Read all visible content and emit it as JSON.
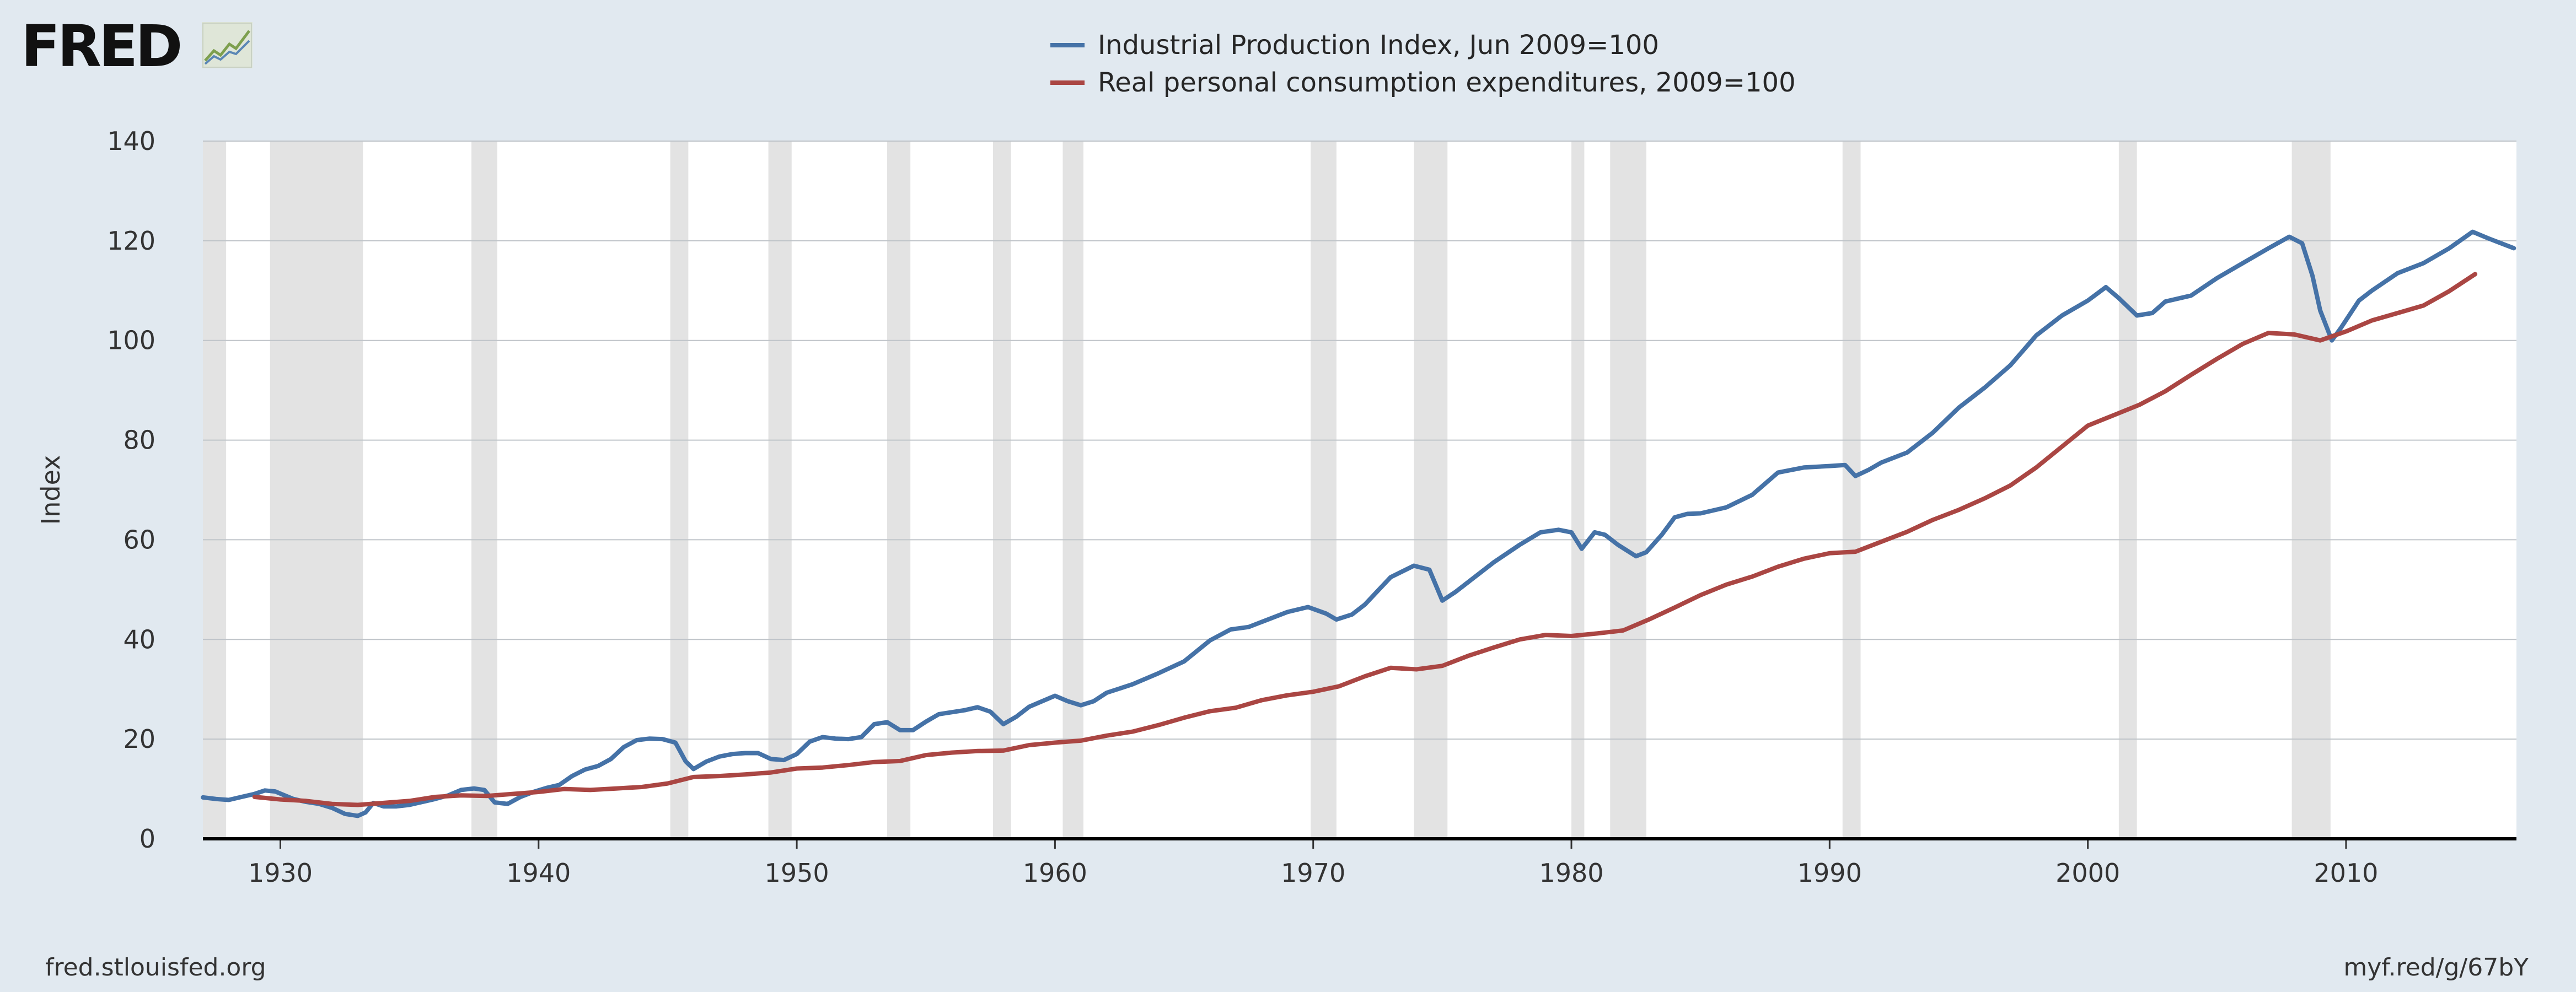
{
  "brand": {
    "name": "FRED"
  },
  "footer": {
    "left": "fred.stlouisfed.org",
    "right": "myf.red/g/67bY"
  },
  "colors": {
    "background": "#e1e9f0",
    "plot_bg": "#ffffff",
    "recession": "#e3e3e3",
    "grid": "#bfc4c9",
    "series1": "#4572a7",
    "series2": "#aa4643"
  },
  "chart_data": {
    "type": "line",
    "title": "",
    "xlabel": "",
    "ylabel": "Index",
    "xlim": [
      1927,
      2016.6
    ],
    "ylim": [
      0,
      140
    ],
    "y_ticks": [
      0,
      20,
      40,
      60,
      80,
      100,
      120,
      140
    ],
    "y_tick_labels": [
      "0",
      "20",
      "40",
      "60",
      "80",
      "100",
      "120",
      "140"
    ],
    "x_ticks": [
      1930,
      1940,
      1950,
      1960,
      1970,
      1980,
      1990,
      2000,
      2010
    ],
    "x_tick_labels": [
      "1930",
      "1940",
      "1950",
      "1960",
      "1970",
      "1980",
      "1990",
      "2000",
      "2010"
    ],
    "grid": true,
    "legend_position": "top-center",
    "recessions": [
      [
        1927.0,
        1927.9
      ],
      [
        1929.6,
        1933.2
      ],
      [
        1937.4,
        1938.4
      ],
      [
        1945.1,
        1945.8
      ],
      [
        1948.9,
        1949.8
      ],
      [
        1953.5,
        1954.4
      ],
      [
        1957.6,
        1958.3
      ],
      [
        1960.3,
        1961.1
      ],
      [
        1969.9,
        1970.9
      ],
      [
        1973.9,
        1975.2
      ],
      [
        1980.0,
        1980.5
      ],
      [
        1981.5,
        1982.9
      ],
      [
        1990.5,
        1991.2
      ],
      [
        2001.2,
        2001.9
      ],
      [
        2007.9,
        2009.4
      ]
    ],
    "series": [
      {
        "name": "Industrial Production Index, Jun 2009=100",
        "x": [
          1927.0,
          1927.5,
          1928.0,
          1928.5,
          1929.0,
          1929.4,
          1929.8,
          1930.5,
          1931.0,
          1931.5,
          1932.0,
          1932.5,
          1933.0,
          1933.3,
          1933.6,
          1934.0,
          1934.5,
          1935.0,
          1935.5,
          1936.0,
          1936.5,
          1937.0,
          1937.5,
          1937.9,
          1938.3,
          1938.8,
          1939.3,
          1939.8,
          1940.3,
          1940.8,
          1941.3,
          1941.8,
          1942.3,
          1942.8,
          1943.3,
          1943.8,
          1944.3,
          1944.8,
          1945.3,
          1945.7,
          1946.0,
          1946.5,
          1947.0,
          1947.5,
          1948.0,
          1948.5,
          1949.0,
          1949.5,
          1950.0,
          1950.5,
          1951.0,
          1951.5,
          1952.0,
          1952.5,
          1953.0,
          1953.5,
          1954.0,
          1954.5,
          1955.0,
          1955.5,
          1956.0,
          1956.5,
          1957.0,
          1957.5,
          1958.0,
          1958.5,
          1959.0,
          1959.5,
          1960.0,
          1960.5,
          1961.0,
          1961.5,
          1962.0,
          1963.0,
          1964.0,
          1965.0,
          1966.0,
          1966.8,
          1967.5,
          1968.0,
          1969.0,
          1969.8,
          1970.5,
          1970.9,
          1971.5,
          1972.0,
          1973.0,
          1973.9,
          1974.5,
          1975.0,
          1975.5,
          1976.0,
          1977.0,
          1978.0,
          1978.8,
          1979.5,
          1980.0,
          1980.4,
          1980.9,
          1981.3,
          1981.8,
          1982.5,
          1982.9,
          1983.5,
          1984.0,
          1984.5,
          1985.0,
          1986.0,
          1987.0,
          1988.0,
          1989.0,
          1990.0,
          1990.6,
          1991.0,
          1991.5,
          1992.0,
          1993.0,
          1994.0,
          1995.0,
          1996.0,
          1997.0,
          1998.0,
          1999.0,
          2000.0,
          2000.7,
          2001.2,
          2001.9,
          2002.5,
          2003.0,
          2004.0,
          2005.0,
          2006.0,
          2007.0,
          2007.8,
          2008.3,
          2008.7,
          2009.0,
          2009.45,
          2009.8,
          2010.5,
          2011.0,
          2012.0,
          2013.0,
          2014.0,
          2014.9,
          2015.5,
          2016.0,
          2016.5
        ],
        "y": [
          8.3,
          8.0,
          7.8,
          8.4,
          9.0,
          9.7,
          9.5,
          8.0,
          7.4,
          7.0,
          6.2,
          5.0,
          4.6,
          5.3,
          7.2,
          6.5,
          6.5,
          6.8,
          7.4,
          8.0,
          8.7,
          9.8,
          10.1,
          9.8,
          7.3,
          7.0,
          8.4,
          9.4,
          10.2,
          10.8,
          12.6,
          13.9,
          14.6,
          16.0,
          18.4,
          19.8,
          20.1,
          20.0,
          19.3,
          15.5,
          14.0,
          15.5,
          16.5,
          17.0,
          17.2,
          17.2,
          16.0,
          15.8,
          17.0,
          19.5,
          20.4,
          20.1,
          20.0,
          20.4,
          23.0,
          23.4,
          21.8,
          21.8,
          23.5,
          25.0,
          25.4,
          25.8,
          26.4,
          25.5,
          23.0,
          24.5,
          26.5,
          27.6,
          28.7,
          27.6,
          26.8,
          27.6,
          29.3,
          31.0,
          33.2,
          35.6,
          39.8,
          42.0,
          42.5,
          43.5,
          45.5,
          46.5,
          45.2,
          44.0,
          45.0,
          47.0,
          52.5,
          54.8,
          54.0,
          47.8,
          49.5,
          51.5,
          55.5,
          59.0,
          61.5,
          62.0,
          61.5,
          58.2,
          61.5,
          61.0,
          59.0,
          56.7,
          57.5,
          61.0,
          64.5,
          65.2,
          65.3,
          66.5,
          69.0,
          73.5,
          74.5,
          74.8,
          75.0,
          72.8,
          74.0,
          75.5,
          77.5,
          81.5,
          86.5,
          90.5,
          95.0,
          101.0,
          105.0,
          108.0,
          110.7,
          108.5,
          105.0,
          105.5,
          107.8,
          109.0,
          112.5,
          115.5,
          118.5,
          120.8,
          119.5,
          113.0,
          106.0,
          100.0,
          102.5,
          108.0,
          110.0,
          113.5,
          115.5,
          118.5,
          121.8,
          120.5,
          119.5,
          118.5
        ]
      },
      {
        "name": "Real personal consumption expenditures, 2009=100",
        "x": [
          1929,
          1930,
          1931,
          1932,
          1933,
          1934,
          1935,
          1936,
          1937,
          1938,
          1939,
          1940,
          1941,
          1942,
          1943,
          1944,
          1945,
          1946,
          1947,
          1948,
          1949,
          1950,
          1951,
          1952,
          1953,
          1954,
          1955,
          1956,
          1957,
          1958,
          1959,
          1960,
          1961,
          1962,
          1963,
          1964,
          1965,
          1966,
          1967,
          1968,
          1969,
          1970,
          1971,
          1972,
          1973,
          1974,
          1975,
          1976,
          1977,
          1978,
          1979,
          1980,
          1981,
          1982,
          1983,
          1984,
          1985,
          1986,
          1987,
          1988,
          1989,
          1990,
          1991,
          1992,
          1993,
          1994,
          1995,
          1996,
          1997,
          1998,
          1999,
          2000,
          2001,
          2002,
          2003,
          2004,
          2005,
          2006,
          2007,
          2008,
          2009,
          2010,
          2011,
          2012,
          2013,
          2014,
          2015
        ],
        "y": [
          8.4,
          7.9,
          7.6,
          7.0,
          6.8,
          7.2,
          7.6,
          8.4,
          8.7,
          8.6,
          9.0,
          9.4,
          10.0,
          9.8,
          10.1,
          10.4,
          11.1,
          12.4,
          12.6,
          12.9,
          13.3,
          14.1,
          14.3,
          14.8,
          15.4,
          15.6,
          16.8,
          17.3,
          17.6,
          17.7,
          18.8,
          19.3,
          19.7,
          20.7,
          21.5,
          22.8,
          24.3,
          25.6,
          26.3,
          27.8,
          28.8,
          29.5,
          30.6,
          32.6,
          34.3,
          34.0,
          34.7,
          36.7,
          38.4,
          40.0,
          40.9,
          40.7,
          41.2,
          41.8,
          44.0,
          46.4,
          48.9,
          51.0,
          52.6,
          54.6,
          56.2,
          57.3,
          57.6,
          59.6,
          61.6,
          64.0,
          66.0,
          68.3,
          70.9,
          74.5,
          78.7,
          82.9,
          85.0,
          87.1,
          89.8,
          93.1,
          96.3,
          99.3,
          101.5,
          101.2,
          100.0,
          101.8,
          104.0,
          105.5,
          107.0,
          109.9,
          113.3
        ]
      }
    ]
  }
}
